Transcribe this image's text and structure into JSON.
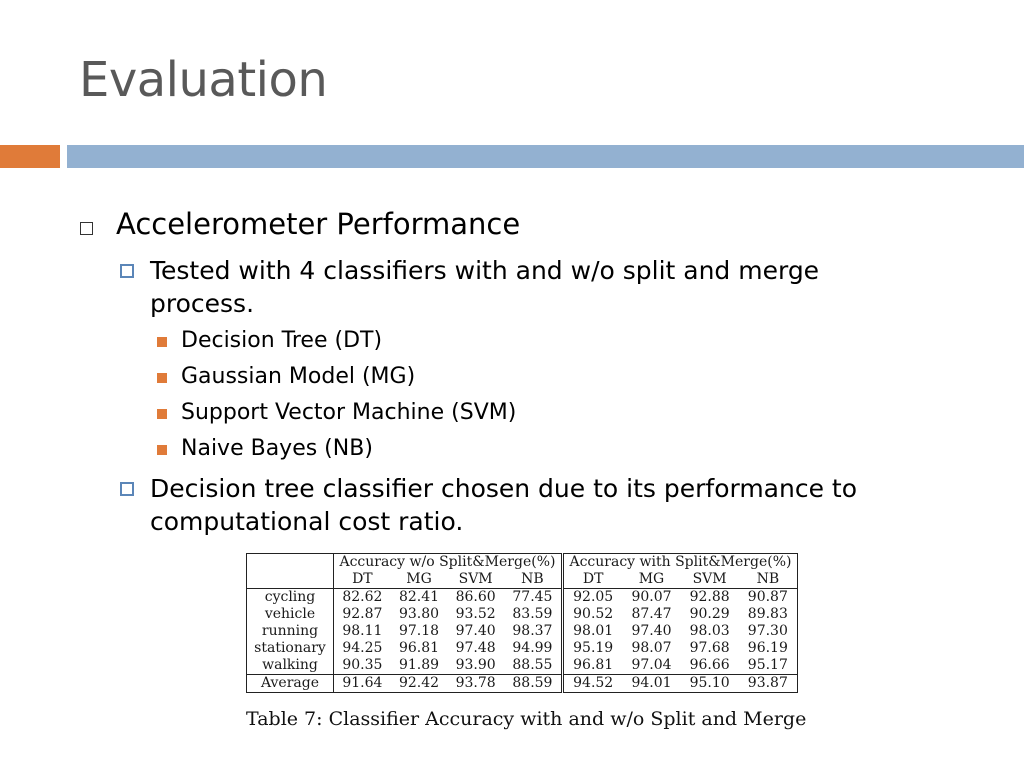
{
  "title": "Evaluation",
  "colors": {
    "accent_orange": "#E07B39",
    "accent_blue": "#93B1D1",
    "bullet_blue": "#5B86B8",
    "square_orange": "#E07B39"
  },
  "bullets": {
    "level1": "Accelerometer Performance",
    "b1_line1": "Tested with 4 classifiers with and w/o split and merge",
    "b1_line2": "process.",
    "classifiers": [
      "Decision Tree (DT)",
      "Gaussian Model (MG)",
      "Support Vector Machine (SVM)",
      "Naive Bayes (NB)"
    ],
    "b2_line1": "Decision tree classifier chosen due to its performance to",
    "b2_line2": "computational cost ratio."
  },
  "table": {
    "group_without": "Accuracy w/o Split&Merge(%)",
    "group_with": "Accuracy with Split&Merge(%)",
    "columns": [
      "DT",
      "MG",
      "SVM",
      "NB"
    ],
    "rows": [
      {
        "label": "cycling",
        "without": [
          "82.62",
          "82.41",
          "86.60",
          "77.45"
        ],
        "with": [
          "92.05",
          "90.07",
          "92.88",
          "90.87"
        ]
      },
      {
        "label": "vehicle",
        "without": [
          "92.87",
          "93.80",
          "93.52",
          "83.59"
        ],
        "with": [
          "90.52",
          "87.47",
          "90.29",
          "89.83"
        ]
      },
      {
        "label": "running",
        "without": [
          "98.11",
          "97.18",
          "97.40",
          "98.37"
        ],
        "with": [
          "98.01",
          "97.40",
          "98.03",
          "97.30"
        ]
      },
      {
        "label": "stationary",
        "without": [
          "94.25",
          "96.81",
          "97.48",
          "94.99"
        ],
        "with": [
          "95.19",
          "98.07",
          "97.68",
          "96.19"
        ]
      },
      {
        "label": "walking",
        "without": [
          "90.35",
          "91.89",
          "93.90",
          "88.55"
        ],
        "with": [
          "96.81",
          "97.04",
          "96.66",
          "95.17"
        ]
      }
    ],
    "average": {
      "label": "Average",
      "without": [
        "91.64",
        "92.42",
        "93.78",
        "88.59"
      ],
      "with": [
        "94.52",
        "94.01",
        "95.10",
        "93.87"
      ]
    },
    "caption": "Table 7: Classifier Accuracy with and w/o Split and Merge"
  }
}
